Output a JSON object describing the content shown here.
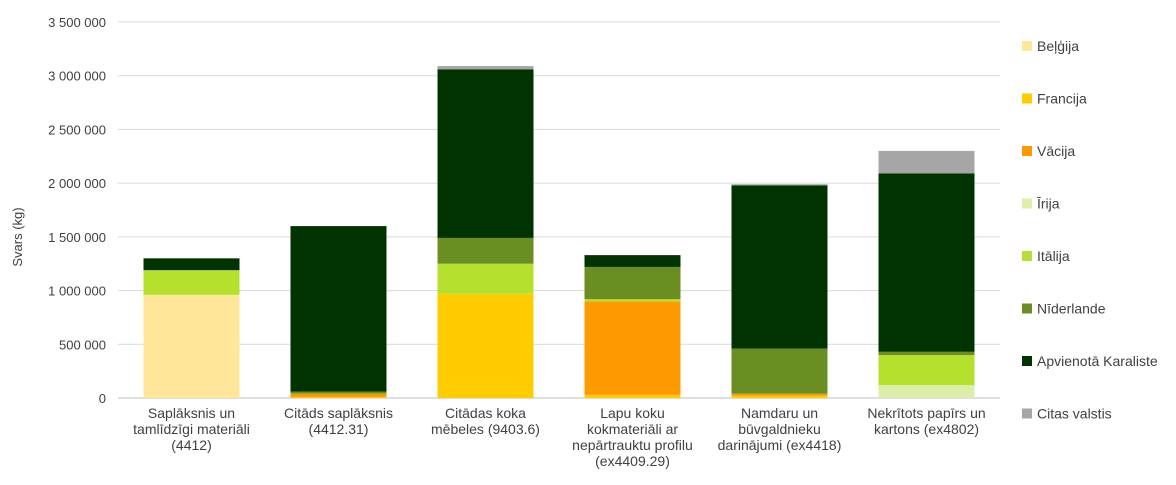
{
  "chart_data": {
    "type": "bar",
    "stacked": true,
    "title": "",
    "xlabel": "",
    "ylabel": "Svars (kg)",
    "ylim": [
      0,
      3500000
    ],
    "yticks": [
      0,
      500000,
      1000000,
      1500000,
      2000000,
      2500000,
      3000000,
      3500000
    ],
    "ytick_labels": [
      "0",
      "500 000",
      "1 000 000",
      "1 500 000",
      "2 000 000",
      "2 500 000",
      "3 000 000",
      "3 500 000"
    ],
    "grid": true,
    "legend_position": "right",
    "categories": [
      [
        "Saplāksnis un",
        "tamlīdzīgi materiāli",
        "(4412)"
      ],
      [
        "Citāds saplāksnis",
        "(4412.31)"
      ],
      [
        "Citādas koka",
        "mēbeles (9403.6)"
      ],
      [
        "Lapu koku",
        "kokmateriāli ar",
        "nepārtrauktu profilu",
        "(ex4409.29)"
      ],
      [
        "Namdaru un",
        "būvgaldnieku",
        "darinājumi (ex4418)"
      ],
      [
        "Nekrītots papīrs un",
        "kartons (ex4802)"
      ]
    ],
    "series": [
      {
        "name": "Beļģija",
        "color": "#FFE699",
        "values": [
          960000,
          0,
          0,
          0,
          0,
          0
        ]
      },
      {
        "name": "Francija",
        "color": "#FFCC00",
        "values": [
          0,
          10000,
          970000,
          30000,
          20000,
          0
        ]
      },
      {
        "name": "Vācija",
        "color": "#FF9900",
        "values": [
          0,
          30000,
          0,
          870000,
          20000,
          0
        ]
      },
      {
        "name": "Īrija",
        "color": "#DDEEAA",
        "values": [
          0,
          0,
          0,
          0,
          0,
          120000
        ]
      },
      {
        "name": "Itālija",
        "color": "#B5E02E",
        "values": [
          230000,
          0,
          280000,
          20000,
          0,
          280000
        ]
      },
      {
        "name": "Nīderlande",
        "color": "#6B8E23",
        "values": [
          0,
          20000,
          240000,
          300000,
          420000,
          30000
        ]
      },
      {
        "name": "Apvienotā Karaliste",
        "color": "#003300",
        "values": [
          110000,
          1540000,
          1570000,
          110000,
          1520000,
          1660000
        ]
      },
      {
        "name": "Citas valstis",
        "color": "#A6A6A6",
        "values": [
          0,
          0,
          30000,
          0,
          10000,
          210000
        ]
      }
    ]
  }
}
